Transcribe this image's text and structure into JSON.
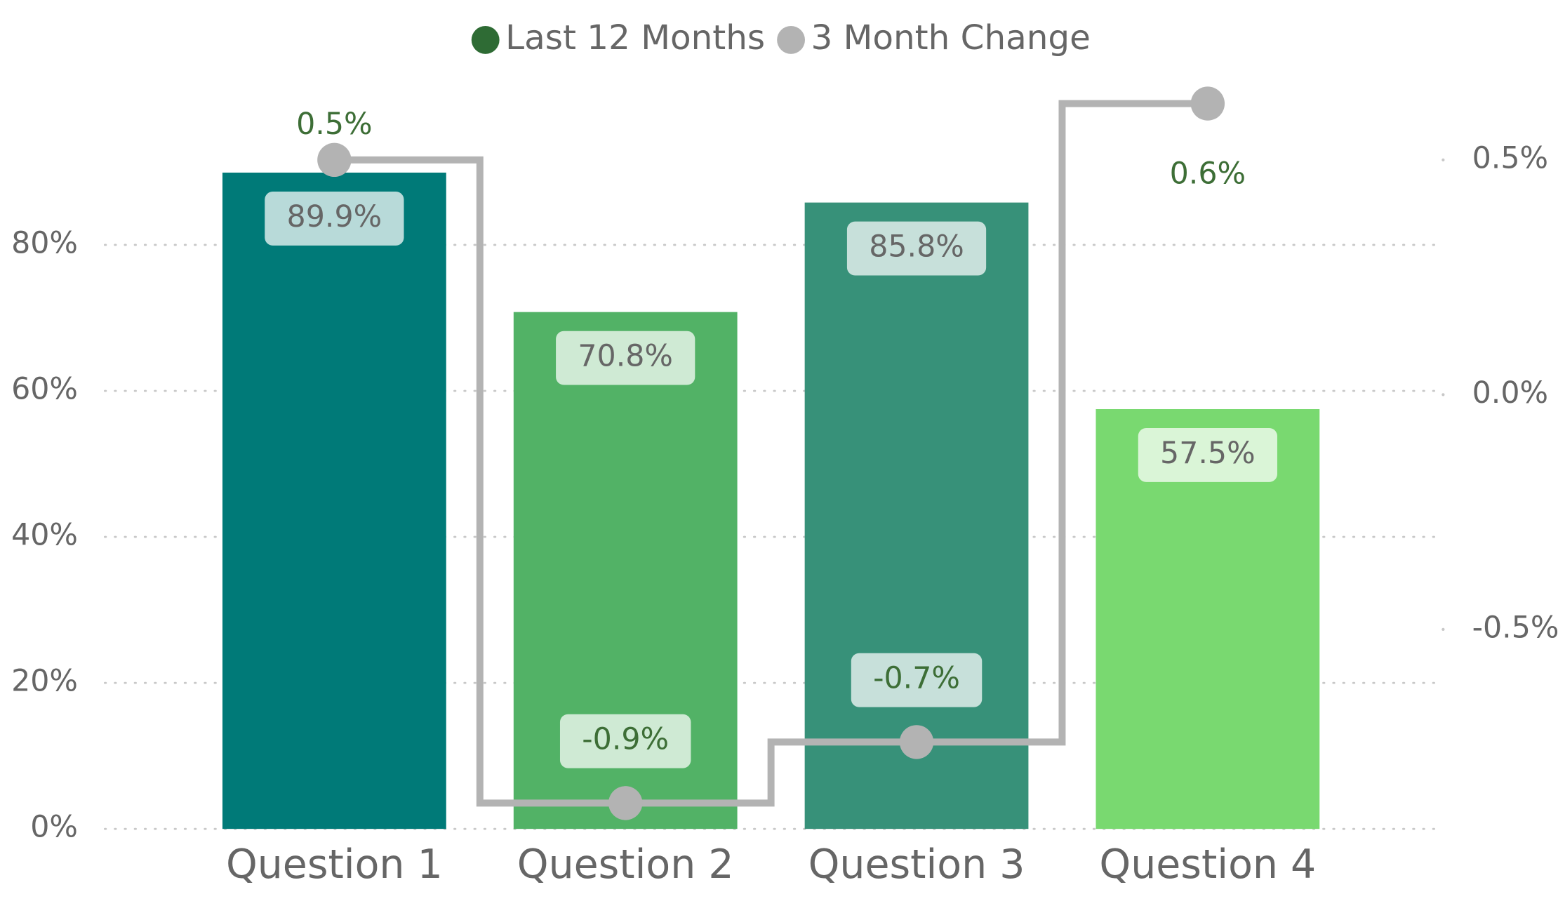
{
  "chart_data": {
    "type": "bar_line",
    "categories": [
      "Question 1",
      "Question 2",
      "Question 3",
      "Question 4"
    ],
    "series": [
      {
        "name": "Last 12 Months",
        "color": "#2e6b34",
        "type": "bar",
        "colors": [
          "#007a78",
          "#52b266",
          "#379179",
          "#79d970"
        ],
        "values": [
          89.9,
          70.8,
          85.8,
          57.5
        ],
        "value_labels": [
          "89.9%",
          "70.8%",
          "85.8%",
          "57.5%"
        ]
      },
      {
        "name": "3 Month Change",
        "color": "#b3b3b3",
        "type": "step",
        "axis": "y2",
        "label_color": "#3d6e36",
        "values": [
          0.5,
          -0.87,
          -0.74,
          0.62
        ],
        "value_labels": [
          "0.5%",
          "-0.9%",
          "-0.7%",
          "0.6%"
        ]
      }
    ],
    "ylim": [
      0,
      100
    ],
    "yticks": [
      {
        "value": 0,
        "label": "0%"
      },
      {
        "value": 20,
        "label": "20%"
      },
      {
        "value": 40,
        "label": "40%"
      },
      {
        "value": 60,
        "label": "60%"
      },
      {
        "value": 80,
        "label": "80%"
      }
    ],
    "y2lim": [
      -0.925,
      0.63
    ],
    "y2ticks": [
      {
        "value": -0.5,
        "label": "-0.5%"
      },
      {
        "value": 0,
        "label": "0.0%"
      },
      {
        "value": 0.5,
        "label": "0.5%"
      }
    ],
    "grid": true,
    "legend": "top"
  }
}
